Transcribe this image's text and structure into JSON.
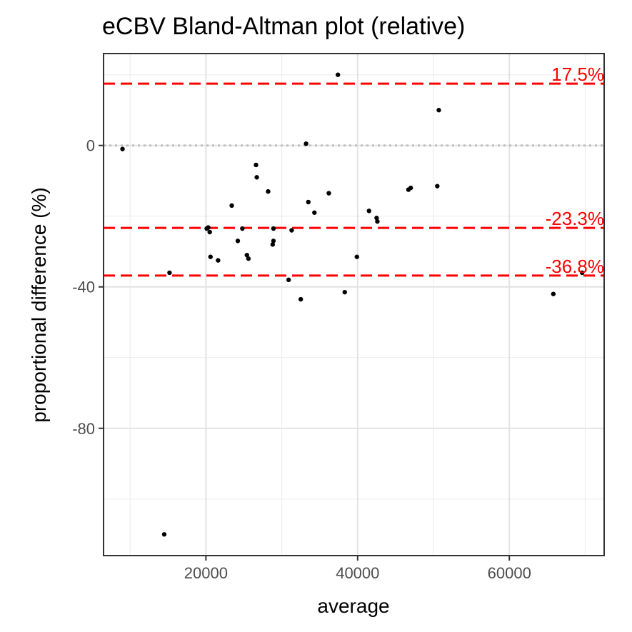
{
  "chart_data": {
    "type": "scatter",
    "title": "eCBV   Bland-Altman plot (relative)",
    "xlabel": "average",
    "ylabel": "proportional difference (%)",
    "xlim": [
      6500,
      72500
    ],
    "ylim": [
      -116,
      26
    ],
    "x_ticks": [
      20000,
      40000,
      60000
    ],
    "x_tick_labels": [
      "20000",
      "40000",
      "60000"
    ],
    "y_ticks": [
      -80,
      -40,
      0
    ],
    "y_tick_labels": [
      "-80",
      "-40",
      "0"
    ],
    "grid": true,
    "zero_line": 0,
    "reference_lines": [
      {
        "value": 17.5,
        "label": "17.5%",
        "color": "#ff0000"
      },
      {
        "value": -23.3,
        "label": "-23.3%",
        "color": "#ff0000"
      },
      {
        "value": -36.8,
        "label": "-36.8%",
        "color": "#ff0000"
      }
    ],
    "points": [
      {
        "x": 9000,
        "y": -1
      },
      {
        "x": 14500,
        "y": -110
      },
      {
        "x": 15200,
        "y": -36
      },
      {
        "x": 20100,
        "y": -23.5
      },
      {
        "x": 20300,
        "y": -23.2
      },
      {
        "x": 20500,
        "y": -24.5
      },
      {
        "x": 20600,
        "y": -31.5
      },
      {
        "x": 21600,
        "y": -32.5
      },
      {
        "x": 23400,
        "y": -17
      },
      {
        "x": 24200,
        "y": -27
      },
      {
        "x": 24800,
        "y": -23.5
      },
      {
        "x": 25400,
        "y": -31
      },
      {
        "x": 25600,
        "y": -32
      },
      {
        "x": 26600,
        "y": -5.5
      },
      {
        "x": 26700,
        "y": -9
      },
      {
        "x": 28200,
        "y": -13
      },
      {
        "x": 28800,
        "y": -28
      },
      {
        "x": 28900,
        "y": -23.5
      },
      {
        "x": 28900,
        "y": -27
      },
      {
        "x": 30900,
        "y": -38
      },
      {
        "x": 31300,
        "y": -24
      },
      {
        "x": 32500,
        "y": -43.5
      },
      {
        "x": 33200,
        "y": 0.5
      },
      {
        "x": 33500,
        "y": -16
      },
      {
        "x": 34300,
        "y": -19
      },
      {
        "x": 36200,
        "y": -13.5
      },
      {
        "x": 37400,
        "y": 20
      },
      {
        "x": 38300,
        "y": -41.5
      },
      {
        "x": 39900,
        "y": -31.5
      },
      {
        "x": 41500,
        "y": -18.5
      },
      {
        "x": 42500,
        "y": -20.5
      },
      {
        "x": 42600,
        "y": -21.5
      },
      {
        "x": 46700,
        "y": -12.5
      },
      {
        "x": 47000,
        "y": -12
      },
      {
        "x": 50500,
        "y": -11.5
      },
      {
        "x": 50700,
        "y": 10
      },
      {
        "x": 65800,
        "y": -42
      },
      {
        "x": 69600,
        "y": -36
      }
    ]
  }
}
